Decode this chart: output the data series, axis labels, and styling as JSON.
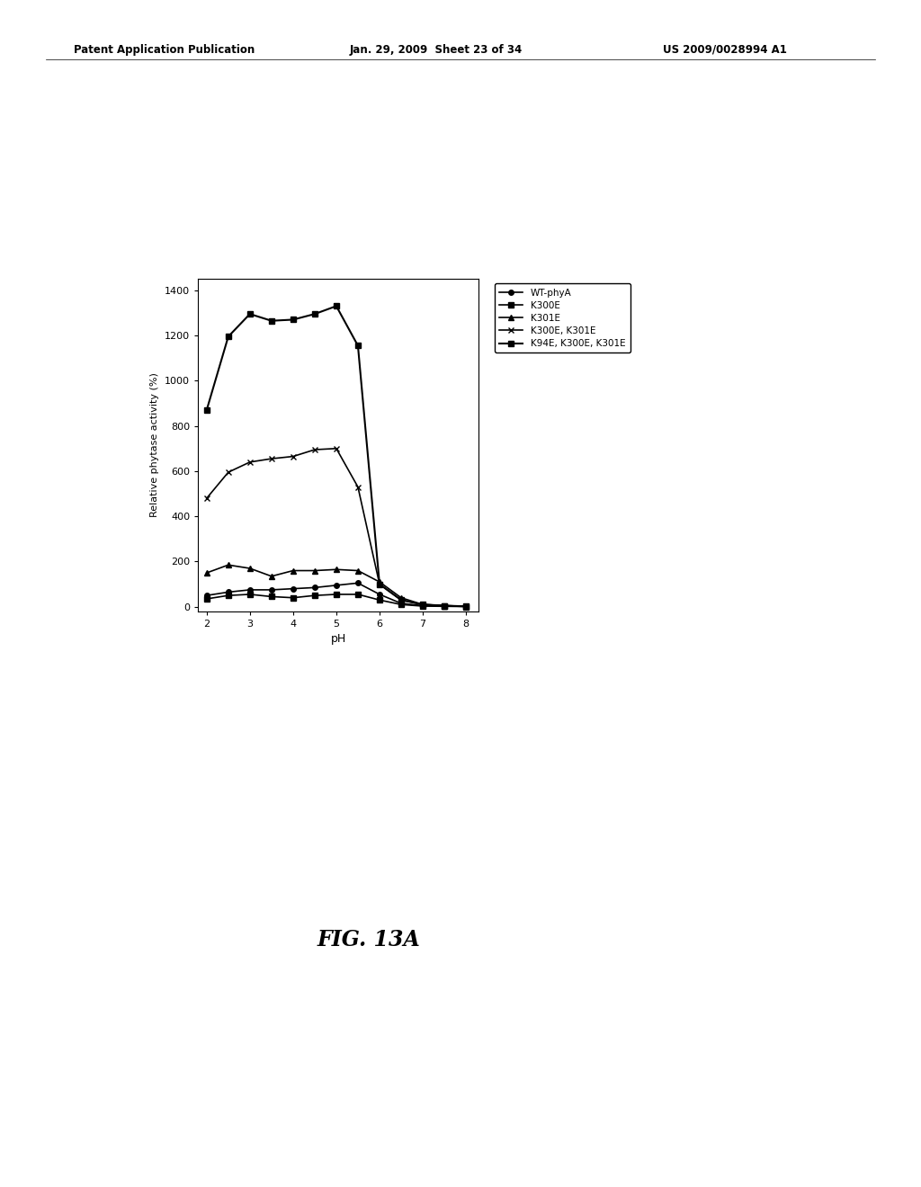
{
  "xlabel": "pH",
  "ylabel": "Relative phytase activity (%)",
  "xlim": [
    1.8,
    8.3
  ],
  "ylim": [
    -20,
    1450
  ],
  "xticks": [
    2,
    3,
    4,
    5,
    6,
    7,
    8
  ],
  "yticks": [
    0,
    200,
    400,
    600,
    800,
    1000,
    1200,
    1400
  ],
  "background_color": "#ffffff",
  "header_line1": "Patent Application Publication",
  "header_line2": "Jan. 29, 2009  Sheet 23 of 34",
  "header_line3": "US 2009/0028994 A1",
  "fig_label": "FIG. 13A",
  "series": [
    {
      "label": "WT-phyA",
      "color": "#000000",
      "marker": "o",
      "markersize": 4,
      "linewidth": 1.2,
      "x": [
        2,
        2.5,
        3,
        3.5,
        4,
        4.5,
        5,
        5.5,
        6,
        6.5,
        7,
        7.5,
        8
      ],
      "y": [
        50,
        65,
        75,
        75,
        80,
        85,
        95,
        105,
        55,
        15,
        5,
        3,
        2
      ]
    },
    {
      "label": "K300E",
      "color": "#000000",
      "marker": "s",
      "markersize": 4,
      "linewidth": 1.2,
      "x": [
        2,
        2.5,
        3,
        3.5,
        4,
        4.5,
        5,
        5.5,
        6,
        6.5,
        7,
        7.5,
        8
      ],
      "y": [
        35,
        50,
        55,
        45,
        40,
        50,
        55,
        55,
        30,
        10,
        3,
        2,
        1
      ]
    },
    {
      "label": "K301E",
      "color": "#000000",
      "marker": "^",
      "markersize": 4,
      "linewidth": 1.2,
      "x": [
        2,
        2.5,
        3,
        3.5,
        4,
        4.5,
        5,
        5.5,
        6,
        6.5,
        7,
        7.5,
        8
      ],
      "y": [
        150,
        185,
        170,
        135,
        160,
        160,
        165,
        160,
        110,
        40,
        10,
        5,
        2
      ]
    },
    {
      "label": "K300E, K301E",
      "color": "#000000",
      "marker": "x",
      "markersize": 5,
      "linewidth": 1.2,
      "x": [
        2,
        2.5,
        3,
        3.5,
        4,
        4.5,
        5,
        5.5,
        6,
        6.5,
        7,
        7.5,
        8
      ],
      "y": [
        480,
        595,
        640,
        655,
        665,
        695,
        700,
        530,
        100,
        30,
        10,
        5,
        2
      ]
    },
    {
      "label": "K94E, K300E, K301E",
      "color": "#000000",
      "marker": "s",
      "markersize": 5,
      "linewidth": 1.5,
      "x": [
        2,
        2.5,
        3,
        3.5,
        4,
        4.5,
        5,
        5.5,
        6,
        6.5,
        7,
        7.5,
        8
      ],
      "y": [
        870,
        1195,
        1295,
        1265,
        1270,
        1295,
        1330,
        1155,
        100,
        30,
        10,
        5,
        2
      ]
    }
  ]
}
